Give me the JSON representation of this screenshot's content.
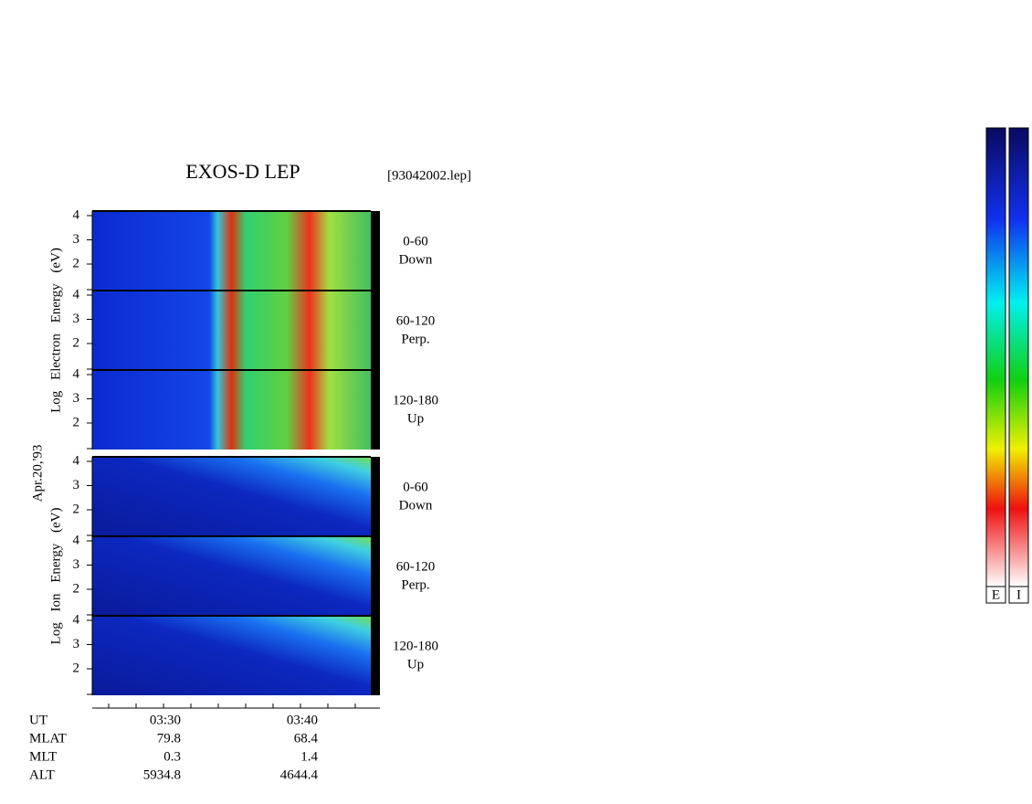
{
  "header": {
    "title": "EXOS-D LEP",
    "file": "[93042002.lep]"
  },
  "date_label": "Apr.20,'93",
  "panel_ticks": [
    "4",
    "3",
    "2"
  ],
  "groups": [
    {
      "axis_label": "Log Electron Energy (eV)",
      "panels": [
        {
          "range": "0-60",
          "direction": "Down"
        },
        {
          "range": "60-120",
          "direction": "Perp."
        },
        {
          "range": "120-180",
          "direction": "Up"
        }
      ]
    },
    {
      "axis_label": "Log Ion Energy (eV)",
      "panels": [
        {
          "range": "0-60",
          "direction": "Down"
        },
        {
          "range": "60-120",
          "direction": "Perp."
        },
        {
          "range": "120-180",
          "direction": "Up"
        }
      ]
    }
  ],
  "footer": {
    "rows": [
      [
        "UT",
        "03:30",
        "03:40"
      ],
      [
        "MLAT",
        "79.8",
        "68.4"
      ],
      [
        "MLT",
        "0.3",
        "1.4"
      ],
      [
        "ALT",
        "5934.8",
        "4644.4"
      ]
    ]
  },
  "colorbars": [
    "E",
    "I"
  ]
}
